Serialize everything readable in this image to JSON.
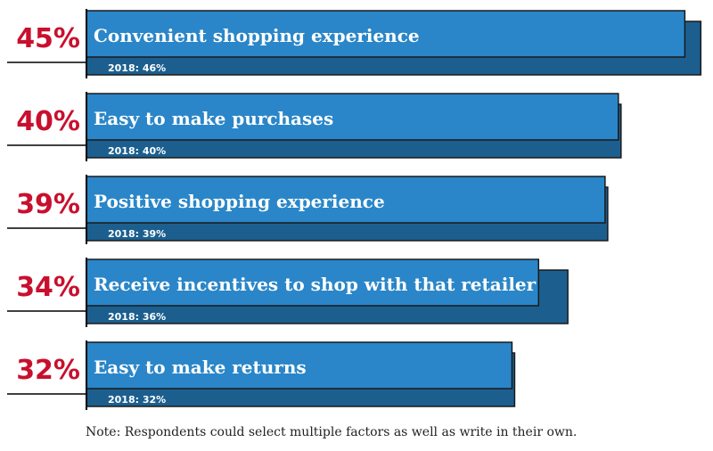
{
  "chart_data": {
    "type": "bar",
    "orientation": "horizontal",
    "categories": [
      "Convenient shopping experience",
      "Easy to make purchases",
      "Positive shopping experience",
      "Receive incentives to shop with that retailer",
      "Easy to make returns"
    ],
    "series": [
      {
        "name": "",
        "values": [
          45,
          40,
          39,
          34,
          32
        ]
      },
      {
        "name": "2018",
        "values": [
          46,
          40,
          39,
          36,
          32
        ]
      }
    ],
    "value_labels": [
      "45%",
      "40%",
      "39%",
      "34%",
      "32%"
    ],
    "prev_labels": [
      "2018: 46%",
      "2018: 40%",
      "2018: 39%",
      "2018: 36%",
      "2018: 32%"
    ],
    "xlim": [
      0,
      46
    ]
  },
  "note": "Note: Respondents could select multiple factors as well as write in their own.",
  "colors": {
    "current_bar": "#2a86c8",
    "previous_bar": "#1c5f8f",
    "bar_outline": "#1a1a1a",
    "percent_text": "#c8102e",
    "bar_text": "#ffffff",
    "rule": "#000000"
  }
}
